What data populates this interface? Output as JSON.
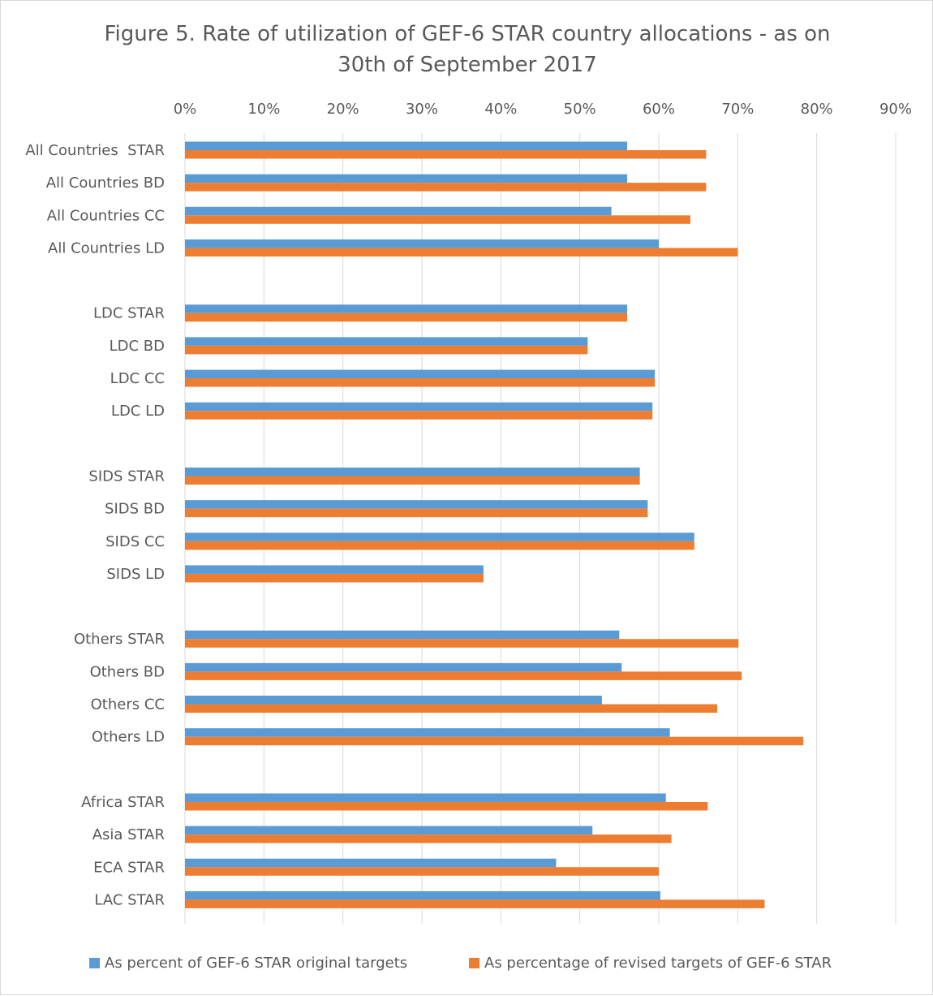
{
  "chart_data": {
    "type": "bar",
    "orientation": "horizontal",
    "title": "Figure 5. Rate of utilization of GEF-6 STAR country allocations - as on\n30th of September 2017",
    "xlim": [
      0,
      90
    ],
    "xticks": [
      "0%",
      "10%",
      "20%",
      "30%",
      "40%",
      "50%",
      "60%",
      "70%",
      "80%",
      "90%"
    ],
    "grid": "vertical",
    "legend_position": "bottom",
    "categories": [
      "All Countries  STAR",
      "All Countries BD",
      "All Countries CC",
      "All Countries LD",
      "",
      "LDC STAR",
      "LDC BD",
      "LDC CC",
      "LDC LD",
      "",
      "SIDS STAR",
      "SIDS BD",
      "SIDS CC",
      "SIDS LD",
      "",
      "Others STAR",
      "Others BD",
      "Others CC",
      "Others LD",
      "",
      "Africa STAR",
      "Asia STAR",
      "ECA STAR",
      "LAC STAR"
    ],
    "series": [
      {
        "name": "As percent of GEF-6 STAR original targets",
        "color": "#5b9bd5",
        "values": [
          56,
          56,
          54,
          60,
          null,
          56,
          51,
          59.5,
          59.2,
          null,
          57.6,
          58.6,
          64.5,
          37.8,
          null,
          55,
          55.3,
          52.8,
          61.4,
          null,
          60.9,
          51.6,
          47,
          60.2
        ]
      },
      {
        "name": "As percentage of revised targets of GEF-6 STAR",
        "color": "#ed7d31",
        "values": [
          66,
          66,
          64,
          70,
          null,
          56,
          51,
          59.5,
          59.2,
          null,
          57.6,
          58.6,
          64.5,
          37.8,
          null,
          70.1,
          70.5,
          67.4,
          78.3,
          null,
          66.2,
          61.6,
          60,
          73.4
        ]
      }
    ]
  }
}
